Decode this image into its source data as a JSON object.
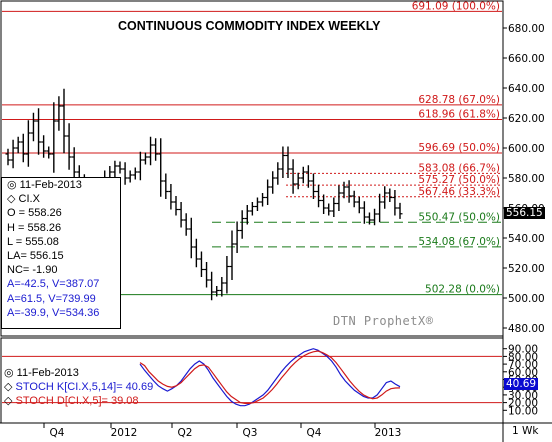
{
  "title": "CONTINUOUS COMMODITY INDEX WEEKLY",
  "watermark": "DTN ProphetX®",
  "period_label": "1 Wk",
  "info_box": {
    "date": "11-Feb-2013",
    "symbol": "CI.X",
    "open": "O = 558.26",
    "high": "H = 558.26",
    "low": "L = 555.08",
    "last": "LA= 556.15",
    "net_change": "NC= -1.90",
    "a1": "A=-42.5, V=387.07",
    "a2": "A=61.5, V=739.99",
    "a3": "A=-39.9, V=534.36"
  },
  "stoch_box": {
    "date": "11-Feb-2013",
    "k_label": "STOCH K[CI.X,5,14]= 40.69",
    "d_label": "STOCH D[CI.X,5]= 39.08"
  },
  "last_price_tag": "556.15",
  "stoch_tag": "40.69",
  "colors": {
    "price_bars": "#000000",
    "fib_red": "#d01a1a",
    "fib_green": "#1a7a1a",
    "stoch_k": "#1a1ad0",
    "stoch_d": "#d01a1a"
  },
  "chart_data": [
    {
      "type": "bar",
      "subtype": "ohlc",
      "title": "CONTINUOUS COMMODITY INDEX WEEKLY",
      "ylim": [
        475,
        695
      ],
      "y_ticks": [
        "480.00",
        "500.00",
        "520.00",
        "540.00",
        "560.00",
        "580.00",
        "600.00",
        "620.00",
        "640.00",
        "660.00",
        "680.00"
      ],
      "x_ticks": [
        "Q4",
        "2012",
        "Q2",
        "Q3",
        "Q4",
        "2013"
      ],
      "grid": false,
      "levels": [
        {
          "label": "691.09 (100.0%)",
          "value": 691.09,
          "color": "red",
          "style": "solid"
        },
        {
          "label": "628.78 (67.0%)",
          "value": 628.78,
          "color": "red",
          "style": "solid"
        },
        {
          "label": "618.96 (61.8%)",
          "value": 618.96,
          "color": "red",
          "style": "solid"
        },
        {
          "label": "596.69 (50.0%)",
          "value": 596.69,
          "color": "red",
          "style": "solid"
        },
        {
          "label": "583.08 (66.7%)",
          "value": 583.08,
          "color": "red",
          "style": "dashed"
        },
        {
          "label": "575.27 (50.0%)",
          "value": 575.27,
          "color": "red",
          "style": "dashed"
        },
        {
          "label": "567.46 (33.3%)",
          "value": 567.46,
          "color": "red",
          "style": "dashed"
        },
        {
          "label": "550.47 (50.0%)",
          "value": 550.47,
          "color": "green",
          "style": "dashed"
        },
        {
          "label": "534.08 (67.0%)",
          "value": 534.08,
          "color": "green",
          "style": "dashed"
        },
        {
          "label": "502.28 (0.0%)",
          "value": 502.28,
          "color": "green",
          "style": "solid"
        }
      ],
      "closes": [
        592,
        600,
        604,
        596,
        610,
        618,
        604,
        598,
        596,
        618,
        628,
        608,
        594,
        584,
        578,
        572,
        568,
        562,
        570,
        579,
        584,
        588,
        586,
        580,
        582,
        584,
        592,
        594,
        602,
        596,
        578,
        571,
        564,
        559,
        552,
        546,
        534,
        526,
        519,
        512,
        504,
        505,
        510,
        521,
        536,
        545,
        553,
        558,
        561,
        564,
        567,
        574,
        580,
        586,
        595,
        586,
        576,
        580,
        584,
        578,
        571,
        565,
        560,
        558,
        563,
        570,
        574,
        568,
        564,
        560,
        554,
        552,
        556,
        564,
        570,
        567,
        560,
        556.15
      ],
      "last": 556.15
    },
    {
      "type": "line",
      "title": "STOCH",
      "ylim": [
        0,
        100
      ],
      "y_ticks": [
        "10.00",
        "20.00",
        "30.00",
        "40.00",
        "50.00",
        "60.00",
        "70.00",
        "80.00",
        "90.00"
      ],
      "reference_lines": [
        20,
        80
      ],
      "series": [
        {
          "name": "STOCH K[CI.X,5,14]",
          "values": [
            70,
            62,
            55,
            48,
            42,
            38,
            35,
            38,
            42,
            48,
            56,
            64,
            70,
            74,
            70,
            62,
            52,
            44,
            36,
            28,
            22,
            18,
            16,
            16,
            18,
            22,
            26,
            30,
            36,
            44,
            52,
            60,
            67,
            73,
            78,
            82,
            86,
            88,
            90,
            88,
            84,
            80,
            74,
            66,
            56,
            48,
            42,
            36,
            32,
            28,
            26,
            26,
            30,
            38,
            46,
            48,
            44,
            40.69
          ]
        },
        {
          "name": "STOCH D[CI.X,5]",
          "values": [
            72,
            68,
            60,
            54,
            48,
            44,
            41,
            40,
            42,
            46,
            52,
            58,
            64,
            68,
            69,
            66,
            58,
            50,
            42,
            34,
            28,
            24,
            20,
            19,
            19,
            20,
            23,
            26,
            31,
            37,
            44,
            52,
            59,
            66,
            72,
            77,
            81,
            84,
            86,
            87,
            85,
            82,
            78,
            72,
            64,
            56,
            48,
            41,
            35,
            30,
            27,
            25,
            26,
            30,
            35,
            38,
            39,
            39.08
          ]
        }
      ]
    }
  ]
}
